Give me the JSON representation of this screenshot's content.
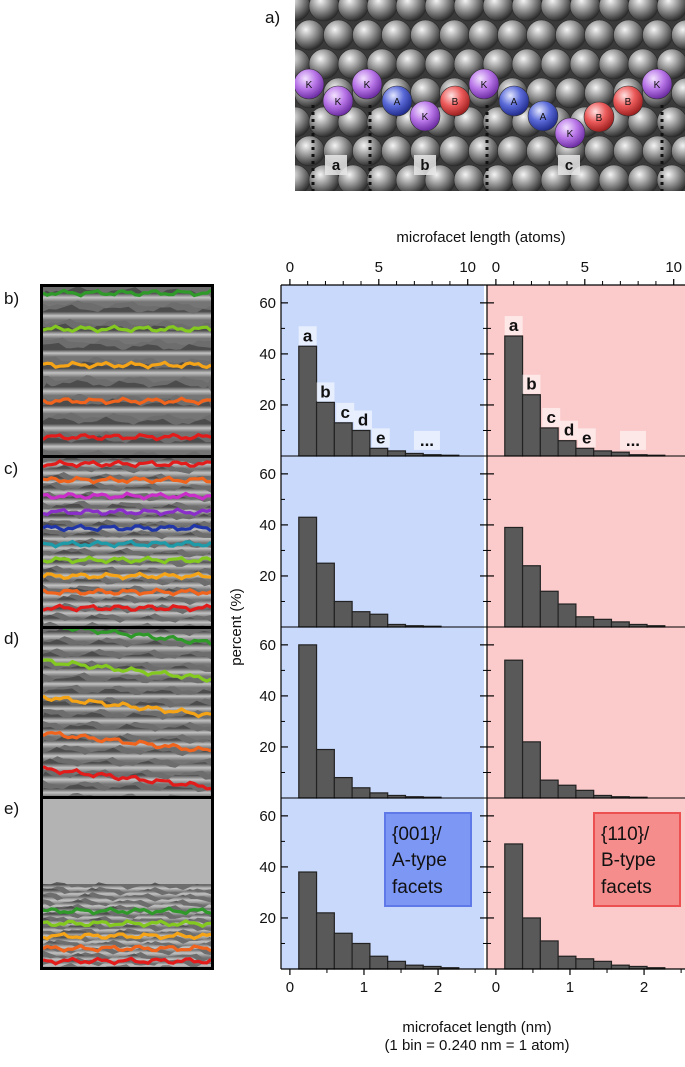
{
  "panel_letters": {
    "a": "a)",
    "b": "b)",
    "c": "c)",
    "d": "d)",
    "e": "e)"
  },
  "atom_labels": [
    "K",
    "K",
    "K",
    "A",
    "K",
    "B",
    "K",
    "A",
    "A",
    "K",
    "B",
    "B",
    "K"
  ],
  "atom_colors": {
    "K": "#b977e8",
    "A": "#5a6ad8",
    "B": "#ec5b5b"
  },
  "step_labels": [
    "a",
    "b",
    "c"
  ],
  "top_axis": {
    "label": "microfacet length (atoms)",
    "ticks": [
      "0",
      "5",
      "10",
      "0",
      "5",
      "10"
    ]
  },
  "y_axis": {
    "label": "percent (%)",
    "ticks": [
      "20",
      "40",
      "60"
    ]
  },
  "bottom_axis": {
    "label": "microfacet length (nm)",
    "sublabel": "(1 bin = 0.240 nm = 1 atom)",
    "ticks": [
      "0",
      "1",
      "2",
      "0",
      "1",
      "2"
    ]
  },
  "facet_boxes": {
    "left": {
      "line1": "{001}/",
      "line2": "A-type",
      "line3": "facets"
    },
    "right": {
      "line1": "{110}/",
      "line2": "B-type",
      "line3": "facets"
    }
  },
  "bar_letters": [
    "a",
    "b",
    "c",
    "d",
    "e",
    "..."
  ],
  "colors": {
    "left_bg": "#c9d9fb",
    "right_bg": "#fbcaca",
    "bar": "#595959",
    "left_box": "#7d97f5",
    "right_box": "#f58d8d"
  },
  "step_colors": {
    "b": [
      "#2f9a2a",
      "#84c91f",
      "#f5a418",
      "#f0641e",
      "#e21b1b"
    ],
    "c": [
      "#e21b1b",
      "#f0641e",
      "#c92ec9",
      "#8a2fc9",
      "#2036a8",
      "#1f9aa8",
      "#84c91f",
      "#f5a418",
      "#f0641e",
      "#e21b1b"
    ],
    "d": [
      "#2f9a2a",
      "#84c91f",
      "#f5a418",
      "#f0641e",
      "#e21b1b"
    ],
    "e": [
      "#2f9a2a",
      "#84c91f",
      "#f5a418",
      "#f0641e",
      "#e21b1b"
    ]
  },
  "chart_data": {
    "type": "bar",
    "x_unit": "nm",
    "bin_width_nm": 0.24,
    "bin_starts_nm": [
      0.12,
      0.36,
      0.6,
      0.84,
      1.08,
      1.32,
      1.56,
      1.8,
      2.04,
      2.28
    ],
    "xlim_nm": [
      -0.12,
      2.62
    ],
    "xlim_atoms": [
      -0.5,
      10.9
    ],
    "ylim": [
      0,
      67
    ],
    "xlabel_top": "microfacet length (atoms)",
    "xlabel_bottom": "microfacet length (nm)",
    "ylabel": "percent (%)",
    "panels": [
      {
        "row": "b",
        "facet": "{001}/A-type",
        "values": [
          43,
          21,
          13,
          10,
          3,
          2,
          1,
          0.5,
          0.3,
          0
        ]
      },
      {
        "row": "b",
        "facet": "{110}/B-type",
        "values": [
          47,
          24,
          11,
          6,
          3,
          2,
          1.5,
          0.5,
          0.3,
          0
        ]
      },
      {
        "row": "c",
        "facet": "{001}/A-type",
        "values": [
          43,
          25,
          10,
          6,
          5,
          1,
          0.5,
          0.3,
          0,
          0
        ]
      },
      {
        "row": "c",
        "facet": "{110}/B-type",
        "values": [
          39,
          24,
          14,
          9,
          4,
          3,
          2,
          1,
          0.5,
          0
        ]
      },
      {
        "row": "d",
        "facet": "{001}/A-type",
        "values": [
          60,
          19,
          8,
          4,
          2,
          1,
          0.5,
          0.3,
          0,
          0
        ]
      },
      {
        "row": "d",
        "facet": "{110}/B-type",
        "values": [
          54,
          22,
          7,
          5,
          3,
          1,
          0.5,
          0.3,
          0,
          0
        ]
      },
      {
        "row": "e",
        "facet": "{001}/A-type",
        "values": [
          38,
          22,
          14,
          10,
          5,
          3,
          1.5,
          1,
          0.5,
          0
        ]
      },
      {
        "row": "e",
        "facet": "{110}/B-type",
        "values": [
          49,
          20,
          11,
          5,
          4,
          3,
          1.5,
          1,
          0.5,
          0
        ]
      }
    ]
  }
}
